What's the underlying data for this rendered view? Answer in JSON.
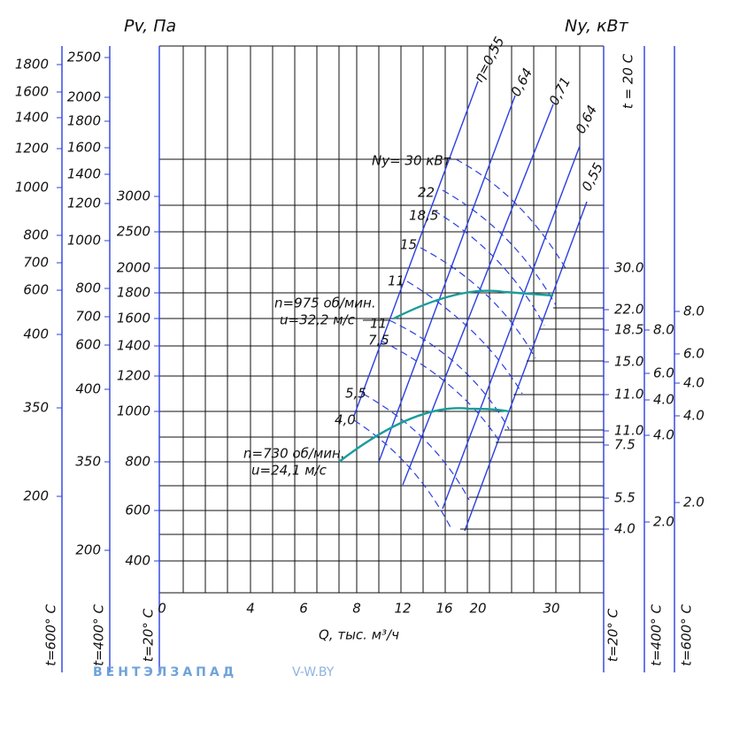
{
  "titles": {
    "pv": "Pv, Па",
    "ny": "Ny, кВт",
    "t_top": "t = 20 C",
    "x_axis": "Q, тыс. м³/ч"
  },
  "left_axis_600": {
    "label": "t=600° C",
    "ticks": [
      "1800",
      "1600",
      "1400",
      "1200",
      "1000",
      "800",
      "700",
      "600",
      "400",
      "350",
      "200"
    ]
  },
  "left_axis_400": {
    "label": "t=400° C",
    "ticks": [
      "2500",
      "2000",
      "1800",
      "1600",
      "1400",
      "1200",
      "1000",
      "800",
      "700",
      "600",
      "400",
      "350",
      "200"
    ]
  },
  "left_axis_20": {
    "label": "t=20° C",
    "ticks": [
      "3000",
      "2500",
      "2000",
      "1800",
      "1600",
      "1400",
      "1200",
      "1000",
      "800",
      "600",
      "400"
    ]
  },
  "x_ticks": [
    "0",
    "4",
    "6",
    "8",
    "12",
    "16",
    "20",
    "30"
  ],
  "right_axis_20": {
    "label": "t=20° C",
    "ticks": [
      "30.0",
      "22.0",
      "18.5",
      "15.0",
      "11.0",
      "11.0",
      "7.5",
      "5.5",
      "4.0"
    ]
  },
  "right_axis_400": {
    "label": "t=400° C",
    "ticks": [
      "8.0",
      "6.0",
      "4.0",
      "4.0",
      "2.0"
    ]
  },
  "right_axis_600": {
    "label": "t=600° C",
    "ticks": [
      "8.0",
      "6.0",
      "4.0",
      "4.0",
      "2.0"
    ]
  },
  "power_labels": [
    "Ny= 30 кВт",
    "22",
    "18,5",
    "15",
    "11",
    "11",
    "7,5",
    "5,5",
    "4,0"
  ],
  "efficiency_labels": [
    "η=0,55",
    "0,64",
    "0,71",
    "0,64",
    "0,55"
  ],
  "speed_975": [
    "n=975 об/мин.",
    "u=32,2 м/с"
  ],
  "speed_730": [
    "n=730 об/мин.",
    "u=24,1 м/с"
  ],
  "watermark": {
    "brand": "ВЕНТЭЛЗАПАД",
    "site": "V-W.BY"
  }
}
